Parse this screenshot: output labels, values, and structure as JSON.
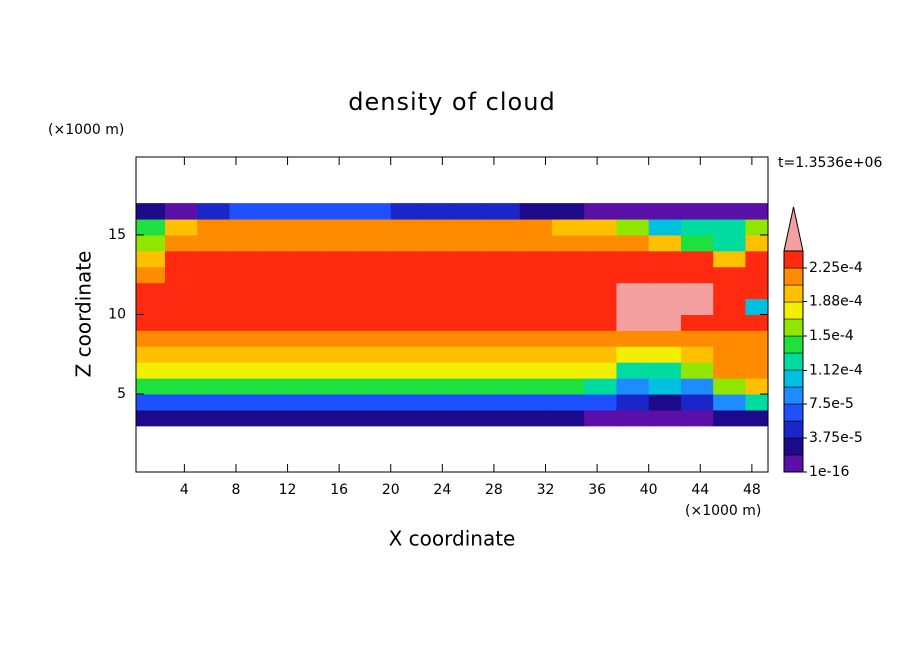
{
  "chart_data": {
    "type": "contour",
    "title": "density of cloud",
    "x_unit": "(×1000 m)",
    "y_unit": "(×1000 m)",
    "time_label": "t=1.3536e+06",
    "xlabel": "X coordinate",
    "ylabel": "Z coordinate",
    "xlim": [
      0.25,
      49.25
    ],
    "ylim": [
      0.1,
      19.9
    ],
    "xticks": [
      4,
      8,
      12,
      16,
      20,
      24,
      28,
      32,
      36,
      40,
      44,
      48
    ],
    "yticks": [
      5,
      10,
      15
    ],
    "x": [
      1.25,
      3.75,
      6.25,
      8.75,
      11.25,
      13.75,
      16.25,
      18.75,
      21.25,
      23.75,
      26.25,
      28.75,
      31.25,
      33.75,
      36.25,
      38.75,
      41.25,
      43.75,
      46.25,
      48.75
    ],
    "y": [
      3.5,
      4.5,
      5.5,
      6.5,
      7.5,
      8.5,
      9.5,
      10.5,
      11.5,
      12.5,
      13.5,
      14.5,
      15.5,
      16.5
    ],
    "z": [
      [
        2e-05,
        2e-05,
        2e-05,
        2e-05,
        2e-05,
        2e-05,
        2e-05,
        2e-05,
        2e-05,
        2e-05,
        2e-05,
        2e-05,
        2e-05,
        2e-05,
        1e-05,
        1e-05,
        1e-05,
        1e-05,
        2e-05,
        3e-05
      ],
      [
        7.5e-05,
        7.5e-05,
        7.5e-05,
        7.5e-05,
        7.5e-05,
        7.5e-05,
        7.5e-05,
        7.5e-05,
        7.5e-05,
        7.5e-05,
        7.5e-05,
        7.5e-05,
        7.5e-05,
        7.5e-05,
        6e-05,
        4e-05,
        3e-05,
        5e-05,
        9e-05,
        0.00013
      ],
      [
        0.000145,
        0.000145,
        0.000145,
        0.000145,
        0.000145,
        0.000145,
        0.000145,
        0.000145,
        0.000145,
        0.000145,
        0.000145,
        0.000145,
        0.000145,
        0.000145,
        0.00013,
        9e-05,
        0.0001,
        8e-05,
        0.00016,
        0.0002
      ],
      [
        0.000185,
        0.000185,
        0.000185,
        0.000185,
        0.000185,
        0.000185,
        0.000185,
        0.000185,
        0.000185,
        0.000185,
        0.000185,
        0.000185,
        0.000185,
        0.000185,
        0.000185,
        0.00013,
        0.00012,
        0.00016,
        0.00022,
        0.00022
      ],
      [
        0.000205,
        0.000205,
        0.000205,
        0.000205,
        0.000205,
        0.000205,
        0.000205,
        0.000205,
        0.000205,
        0.000205,
        0.000205,
        0.000205,
        0.000205,
        0.000205,
        0.000205,
        0.00018,
        0.00017,
        0.00019,
        0.00021,
        0.00021
      ],
      [
        0.00022,
        0.00022,
        0.00022,
        0.00022,
        0.00022,
        0.00022,
        0.00022,
        0.00022,
        0.00022,
        0.00022,
        0.00022,
        0.00022,
        0.00022,
        0.00022,
        0.00022,
        0.00022,
        0.00022,
        0.00021,
        0.00022,
        0.00022
      ],
      [
        0.000235,
        0.000235,
        0.000235,
        0.000235,
        0.000235,
        0.000235,
        0.000235,
        0.000235,
        0.000235,
        0.000235,
        0.000235,
        0.000235,
        0.000235,
        0.000235,
        0.000235,
        0.00025,
        0.000245,
        0.000235,
        0.000235,
        0.000235
      ],
      [
        0.000235,
        0.000235,
        0.000235,
        0.000235,
        0.000235,
        0.000235,
        0.000235,
        0.000235,
        0.000235,
        0.000235,
        0.000235,
        0.000235,
        0.000235,
        0.000235,
        0.000235,
        0.00025,
        0.00025,
        0.00025,
        0.000235,
        0.0001
      ],
      [
        0.000235,
        0.000235,
        0.000235,
        0.000235,
        0.000235,
        0.000235,
        0.000235,
        0.000235,
        0.000235,
        0.000235,
        0.000235,
        0.000235,
        0.000235,
        0.000235,
        0.000235,
        0.00025,
        0.00025,
        0.00025,
        0.000235,
        0.000235
      ],
      [
        0.00022,
        0.000235,
        0.000235,
        0.000235,
        0.000235,
        0.000235,
        0.000235,
        0.000235,
        0.000235,
        0.000235,
        0.000235,
        0.000235,
        0.000235,
        0.000235,
        0.000235,
        0.000235,
        0.000235,
        0.000235,
        0.000235,
        0.000235
      ],
      [
        0.0002,
        0.00023,
        0.00023,
        0.00023,
        0.00023,
        0.00023,
        0.00023,
        0.00023,
        0.00023,
        0.00023,
        0.00023,
        0.00023,
        0.00023,
        0.00023,
        0.00023,
        0.00023,
        0.00023,
        0.00023,
        0.00019,
        0.00023
      ],
      [
        0.00016,
        0.00021,
        0.00022,
        0.00022,
        0.00022,
        0.00022,
        0.00022,
        0.00022,
        0.00022,
        0.00022,
        0.00022,
        0.00022,
        0.00022,
        0.00022,
        0.00022,
        0.000215,
        0.00019,
        0.00015,
        0.00013,
        0.0002
      ],
      [
        0.00014,
        0.0002,
        0.00021,
        0.00021,
        0.00021,
        0.00021,
        0.00021,
        0.00021,
        0.00021,
        0.00021,
        0.00021,
        0.00021,
        0.00021,
        0.0002,
        0.00019,
        0.00016,
        0.0001,
        0.00013,
        0.00012,
        0.00016
      ],
      [
        3e-05,
        1e-05,
        4e-05,
        6e-05,
        6e-05,
        6e-05,
        6e-05,
        6e-05,
        5e-05,
        4e-05,
        4e-05,
        4e-05,
        3e-05,
        3e-05,
        1e-05,
        1e-05,
        1e-05,
        1e-05,
        1e-05,
        1e-05
      ]
    ],
    "colorbar": {
      "levels": [
        1e-16,
        1.875e-05,
        3.75e-05,
        5.625e-05,
        7.5e-05,
        9.375e-05,
        0.0001125,
        0.00013125,
        0.00015,
        0.00016875,
        0.0001875,
        0.00020625,
        0.000225,
        0.00024375
      ],
      "colors": [
        "#5a10a8",
        "#1c0a8a",
        "#1a26c8",
        "#1e50ff",
        "#1e8cff",
        "#00c0e0",
        "#00dca0",
        "#20e040",
        "#90e600",
        "#f0f000",
        "#ffc000",
        "#ff8c00",
        "#ff2a10"
      ],
      "extend_color": "#f4a0a0",
      "ticks": [
        1e-16,
        {
          "value": 3.75e-05,
          "label": "3.75e-5"
        },
        {
          "value": 7.5e-05,
          "label": "7.5e-5"
        },
        {
          "value": 0.000112,
          "label": "1.12e-4"
        },
        {
          "value": 0.00015,
          "label": "1.5e-4"
        },
        {
          "value": 0.000188,
          "label": "1.88e-4"
        },
        {
          "value": 0.000225,
          "label": "2.25e-4"
        }
      ]
    }
  }
}
